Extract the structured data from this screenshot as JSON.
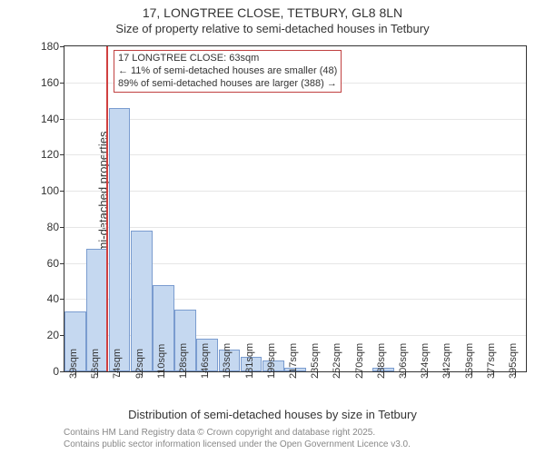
{
  "title_main": "17, LONGTREE CLOSE, TETBURY, GL8 8LN",
  "title_sub": "Size of property relative to semi-detached houses in Tetbury",
  "y_axis_label": "Number of semi-detached properties",
  "x_axis_label": "Distribution of semi-detached houses by size in Tetbury",
  "attribution_line1": "Contains HM Land Registry data © Crown copyright and database right 2025.",
  "attribution_line2": "Contains public sector information licensed under the Open Government Licence v3.0.",
  "chart": {
    "type": "histogram",
    "ylim": [
      0,
      180
    ],
    "ytick_step": 20,
    "grid_color": "#e6e6e6",
    "axis_color": "#333333",
    "bar_fill": "#c5d8f0",
    "bar_border": "#7a9ccf",
    "ref_line_color": "#d04040",
    "annotation_border": "#c04040",
    "background_color": "#ffffff",
    "title_fontsize": 14,
    "subtitle_fontsize": 13,
    "axis_label_fontsize": 13,
    "tick_fontsize": 12,
    "x_tick_fontsize": 11,
    "categories": [
      "39sqm",
      "56sqm",
      "74sqm",
      "92sqm",
      "110sqm",
      "128sqm",
      "146sqm",
      "163sqm",
      "181sqm",
      "199sqm",
      "217sqm",
      "235sqm",
      "252sqm",
      "270sqm",
      "288sqm",
      "306sqm",
      "324sqm",
      "342sqm",
      "359sqm",
      "377sqm",
      "395sqm"
    ],
    "values": [
      33,
      68,
      146,
      78,
      48,
      34,
      18,
      12,
      8,
      6,
      2,
      0,
      0,
      0,
      2,
      0,
      0,
      0,
      0,
      0,
      0
    ],
    "ref_line_index": 1.4,
    "annotation": {
      "line1": "17 LONGTREE CLOSE: 63sqm",
      "line2": "← 11% of semi-detached houses are smaller (48)",
      "line3": "89% of semi-detached houses are larger (388) →"
    }
  }
}
